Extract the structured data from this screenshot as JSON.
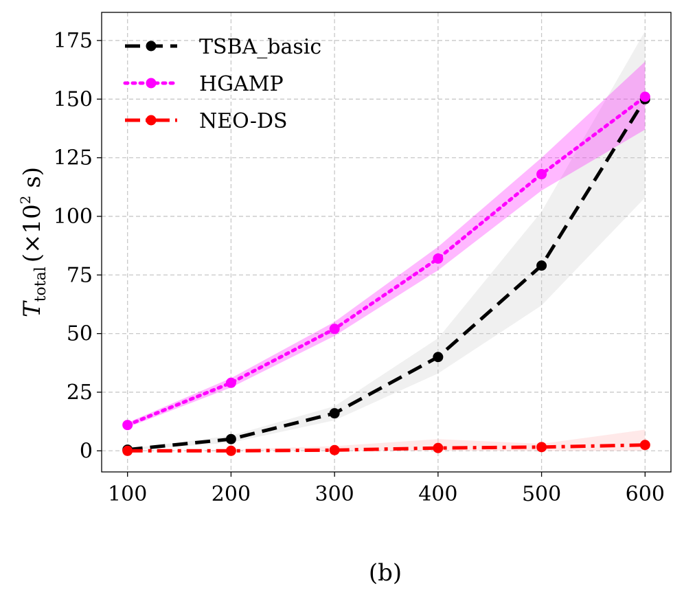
{
  "chart_data": {
    "type": "line",
    "caption": "(b)",
    "ylabel": {
      "symbol": "T",
      "subscript": "total",
      "unit_prefix": "(×10",
      "exponent": "2",
      "unit_suffix": " s)"
    },
    "xlabel": "",
    "x": [
      100,
      200,
      300,
      400,
      500,
      600
    ],
    "xlim": [
      75,
      625
    ],
    "ylim": [
      -9,
      187
    ],
    "xticks": [
      100,
      200,
      300,
      400,
      500,
      600
    ],
    "yticks": [
      0,
      25,
      50,
      75,
      100,
      125,
      150,
      175
    ],
    "grid": true,
    "legend_position": "top-left",
    "series": [
      {
        "name": "TSBA_basic",
        "color": "#000000",
        "band_color": "#c8c8c8",
        "dash": "dashed",
        "values": [
          0.5,
          5,
          16,
          40,
          79,
          150
        ],
        "lower": [
          0.2,
          3.5,
          13,
          33,
          62,
          108
        ],
        "upper": [
          0.8,
          6.5,
          19,
          48,
          102,
          179
        ]
      },
      {
        "name": "HGAMP",
        "color": "#ff00ff",
        "band_color": "#ff00ff",
        "dash": "dotted",
        "values": [
          11,
          29,
          52,
          82,
          118,
          151
        ],
        "lower": [
          10,
          27,
          49,
          77,
          111,
          137
        ],
        "upper": [
          12,
          31,
          55,
          87,
          125,
          166
        ]
      },
      {
        "name": "NEO-DS",
        "color": "#ff0000",
        "band_color": "#ffb0b0",
        "dash": "dashdot",
        "values": [
          0,
          0,
          0.3,
          1.2,
          1.6,
          2.5
        ],
        "lower": [
          0,
          0,
          0,
          0,
          0,
          0
        ],
        "upper": [
          0.3,
          0.5,
          2,
          5,
          3,
          9
        ]
      }
    ]
  }
}
